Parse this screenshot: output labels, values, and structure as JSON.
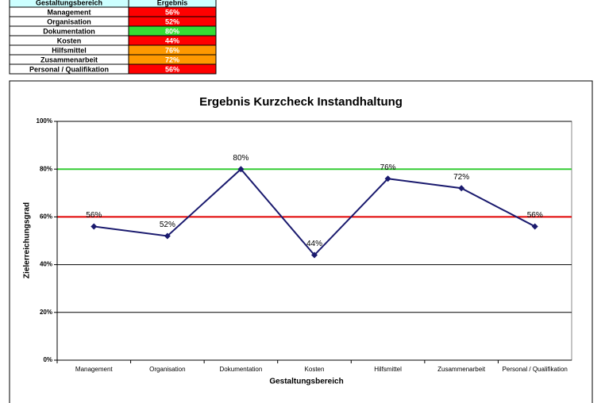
{
  "table": {
    "header": [
      "Gestaltungsbereich",
      "Ergebnis"
    ],
    "rows": [
      [
        "Management",
        "56%"
      ],
      [
        "Organisation",
        "52%"
      ],
      [
        "Dokumentation",
        "80%"
      ],
      [
        "Kosten",
        "44%"
      ],
      [
        "Hilfsmittel",
        "76%"
      ],
      [
        "Zusammenarbeit",
        "72%"
      ],
      [
        "Personal / Qualifikation",
        "56%"
      ]
    ],
    "row_colors": [
      "#ff0000",
      "#ff0000",
      "#33dd33",
      "#ff0000",
      "#ff9900",
      "#ff9900",
      "#ff0000"
    ]
  },
  "chart_data": {
    "type": "line",
    "title": "Ergebnis Kurzcheck Instandhaltung",
    "x_label": "Gestaltungsbereich",
    "y_label": "Zielerreichungsgrad",
    "categories": [
      "Management",
      "Organisation",
      "Dokumentation",
      "Kosten",
      "Hilfsmittel",
      "Zusammenarbeit",
      "Personal / Qualifikation"
    ],
    "values": [
      56,
      52,
      80,
      44,
      76,
      72,
      56
    ],
    "value_labels": [
      "56%",
      "52%",
      "80%",
      "44%",
      "76%",
      "72%",
      "56%"
    ],
    "color": "#1a1a6e",
    "ylim": [
      0,
      100
    ],
    "yticks": [
      {
        "value": 0,
        "label": "0%"
      },
      {
        "value": 20,
        "label": "20%"
      },
      {
        "value": 40,
        "label": "40%"
      },
      {
        "value": 60,
        "label": "60%"
      },
      {
        "value": 80,
        "label": "80%"
      },
      {
        "value": 100,
        "label": "100%"
      }
    ],
    "grid": true,
    "reference_lines": [
      {
        "value": 80,
        "color": "#33cc33"
      },
      {
        "value": 60,
        "color": "#e00000"
      }
    ]
  }
}
